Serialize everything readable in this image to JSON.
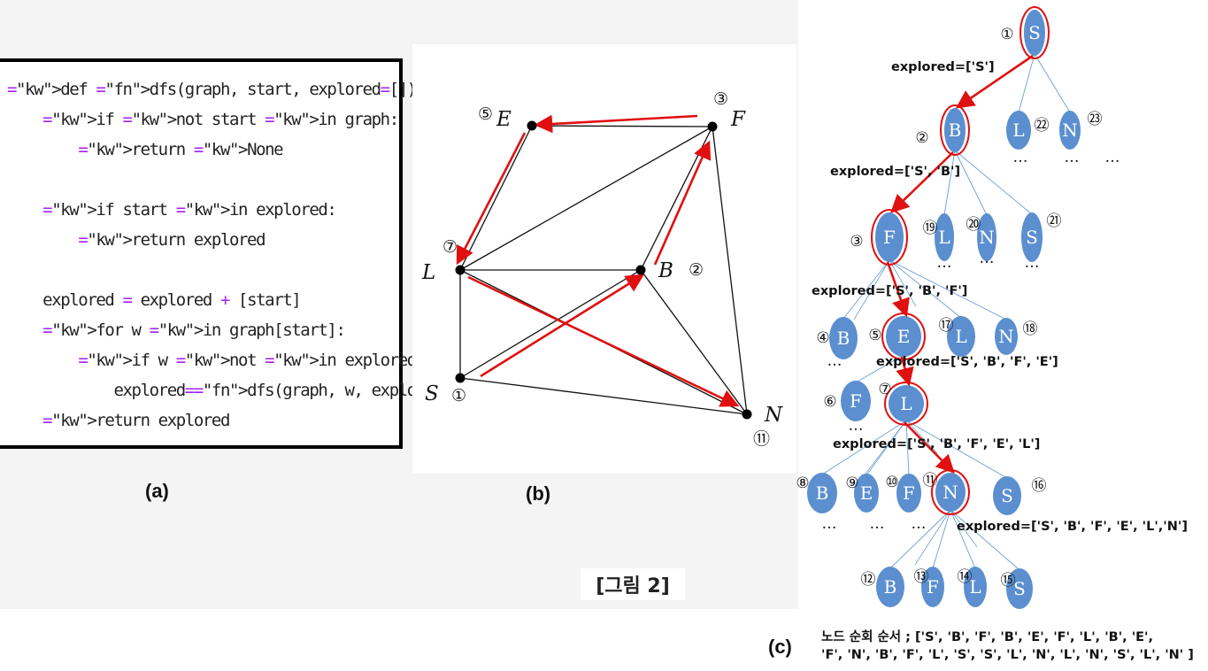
{
  "code": {
    "lines": [
      "def dfs(graph, start, explored=[]):",
      "    if not start in graph:",
      "        return None",
      "",
      "    if start in explored:",
      "        return explored",
      "",
      "    explored = explored + [start]",
      "    for w in graph[start]:",
      "        if w not in explored:",
      "            explored=dfs(graph, w, explored)",
      "    return explored"
    ]
  },
  "captions": {
    "a": "(a)",
    "b": "(b)",
    "c": "(c)"
  },
  "figure_label": "[그림 2]",
  "graph": {
    "nodes": [
      {
        "id": "S",
        "label": "S",
        "order": "①"
      },
      {
        "id": "B",
        "label": "B",
        "order": "②"
      },
      {
        "id": "F",
        "label": "F",
        "order": "③"
      },
      {
        "id": "E",
        "label": "E",
        "order": "⑤"
      },
      {
        "id": "L",
        "label": "L",
        "order": "⑦"
      },
      {
        "id": "N",
        "label": "N",
        "order": "⑪"
      }
    ],
    "edges": [
      [
        "E",
        "F"
      ],
      [
        "E",
        "L"
      ],
      [
        "F",
        "L"
      ],
      [
        "F",
        "B"
      ],
      [
        "F",
        "N"
      ],
      [
        "L",
        "B"
      ],
      [
        "L",
        "S"
      ],
      [
        "L",
        "N"
      ],
      [
        "S",
        "B"
      ],
      [
        "S",
        "N"
      ],
      [
        "B",
        "N"
      ]
    ],
    "traversal_arrows": [
      [
        "S",
        "B"
      ],
      [
        "B",
        "F"
      ],
      [
        "F",
        "E"
      ],
      [
        "E",
        "L"
      ],
      [
        "L",
        "N"
      ]
    ],
    "arrow_color": "#e01010"
  },
  "tree": {
    "nodes": [
      {
        "id": "t1",
        "label": "S",
        "num": "①",
        "visited": true
      },
      {
        "id": "t2",
        "label": "B",
        "num": "②",
        "visited": true
      },
      {
        "id": "t22",
        "label": "L",
        "num": "㉒",
        "visited": false
      },
      {
        "id": "t23",
        "label": "N",
        "num": "㉓",
        "visited": false
      },
      {
        "id": "t3",
        "label": "F",
        "num": "③",
        "visited": true
      },
      {
        "id": "t19",
        "label": "L",
        "num": "⑲",
        "visited": false
      },
      {
        "id": "t20",
        "label": "N",
        "num": "⑳",
        "visited": false
      },
      {
        "id": "t21",
        "label": "S",
        "num": "㉑",
        "visited": false
      },
      {
        "id": "t4",
        "label": "B",
        "num": "④",
        "visited": false
      },
      {
        "id": "t5",
        "label": "E",
        "num": "⑤",
        "visited": true
      },
      {
        "id": "t17",
        "label": "L",
        "num": "⑰",
        "visited": false
      },
      {
        "id": "t18",
        "label": "N",
        "num": "⑱",
        "visited": false
      },
      {
        "id": "t6",
        "label": "F",
        "num": "⑥",
        "visited": false
      },
      {
        "id": "t7",
        "label": "L",
        "num": "⑦",
        "visited": true
      },
      {
        "id": "t8",
        "label": "B",
        "num": "⑧",
        "visited": false
      },
      {
        "id": "t9",
        "label": "E",
        "num": "⑨",
        "visited": false
      },
      {
        "id": "t10",
        "label": "F",
        "num": "⑩",
        "visited": false
      },
      {
        "id": "t11",
        "label": "N",
        "num": "⑪",
        "visited": true
      },
      {
        "id": "t16",
        "label": "S",
        "num": "⑯",
        "visited": false
      },
      {
        "id": "t12",
        "label": "B",
        "num": "⑫",
        "visited": false
      },
      {
        "id": "t13",
        "label": "F",
        "num": "⑬",
        "visited": false
      },
      {
        "id": "t14",
        "label": "L",
        "num": "⑭",
        "visited": false
      },
      {
        "id": "t15",
        "label": "S",
        "num": "⑮",
        "visited": false
      }
    ],
    "explored_labels": [
      "explored=['S']",
      "explored=['S', 'B']",
      "explored=['S', 'B', 'F']",
      "explored=['S', 'B', 'F', 'E']",
      "explored=['S', 'B', 'F', 'E', 'L']",
      "explored=['S', 'B', 'F', 'E', 'L','N']"
    ],
    "ellipsis": "…",
    "node_color": "#5b8fcf",
    "highlight_color": "#e01010",
    "order_text_line1": "노드 순회 순서 ;  ['S', 'B', 'F', 'B', 'E', 'F', 'L',  'B', 'E',",
    "order_text_line2": "'F', 'N', 'B', 'F', 'L', 'S',  'S', 'L', 'N',  'L', 'N',  'S',  'L', 'N' ]"
  }
}
